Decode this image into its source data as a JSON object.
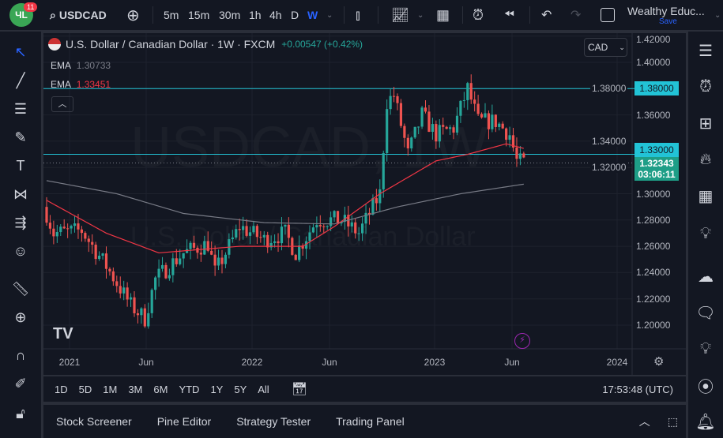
{
  "topbar": {
    "logo_badge": "11",
    "symbol": "USDCAD",
    "intervals": [
      "5m",
      "15m",
      "30m",
      "1h",
      "4h",
      "D",
      "W"
    ],
    "active_interval": "W",
    "layout_name": "Wealthy Educ...",
    "save_label": "Save"
  },
  "legend": {
    "title": "U.S. Dollar / Canadian Dollar · 1W · FXCM",
    "change": "+0.00547 (+0.42%)",
    "ema1_label": "EMA",
    "ema1_value": "1.30733",
    "ema2_label": "EMA",
    "ema2_value": "1.33451"
  },
  "watermark": {
    "symbol": "USDCAD, 1W",
    "name": "U.S. Dollar / Canadian Dollar"
  },
  "currency": "CAD",
  "price_axis": {
    "ticks": [
      "1.42000",
      "1.40000",
      "1.38000",
      "1.36000",
      "1.34000",
      "1.32000",
      "1.30000",
      "1.28000",
      "1.26000",
      "1.24000",
      "1.22000",
      "1.20000"
    ],
    "tick_values": [
      1.42,
      1.4,
      1.38,
      1.36,
      1.34,
      1.32,
      1.3,
      1.28,
      1.26,
      1.24,
      1.22,
      1.2
    ]
  },
  "horizontal_lines": [
    {
      "label": "1.38000",
      "value": 1.38
    },
    {
      "label": "1.33000",
      "value": 1.33
    }
  ],
  "last_price": {
    "value": "1.32343",
    "countdown": "03:06:11"
  },
  "time_axis": [
    "2021",
    "Jun",
    "2022",
    "Jun",
    "2023",
    "Jun",
    "2024"
  ],
  "price_path": [
    [
      0,
      1.285
    ],
    [
      2,
      1.27
    ],
    [
      10,
      1.272
    ],
    [
      17,
      1.245
    ],
    [
      24,
      1.215
    ],
    [
      28,
      1.205
    ],
    [
      31,
      1.235
    ],
    [
      39,
      1.255
    ],
    [
      46,
      1.262
    ],
    [
      48,
      1.24
    ],
    [
      55,
      1.275
    ],
    [
      62,
      1.265
    ],
    [
      68,
      1.27
    ],
    [
      71,
      1.255
    ],
    [
      77,
      1.28
    ],
    [
      84,
      1.28
    ],
    [
      89,
      1.27
    ],
    [
      95,
      1.3
    ],
    [
      97,
      1.37
    ],
    [
      99,
      1.375
    ],
    [
      103,
      1.33
    ],
    [
      107,
      1.36
    ],
    [
      111,
      1.345
    ],
    [
      116,
      1.35
    ],
    [
      120,
      1.38
    ],
    [
      123,
      1.355
    ],
    [
      128,
      1.355
    ],
    [
      132,
      1.345
    ],
    [
      134,
      1.325
    ],
    [
      136,
      1.3234
    ]
  ],
  "ema_fast": [
    [
      0,
      1.295
    ],
    [
      17,
      1.27
    ],
    [
      32,
      1.255
    ],
    [
      55,
      1.26
    ],
    [
      73,
      1.26
    ],
    [
      82,
      1.275
    ],
    [
      95,
      1.3
    ],
    [
      111,
      1.325
    ],
    [
      120,
      1.33
    ],
    [
      131,
      1.338
    ],
    [
      136,
      1.3345
    ]
  ],
  "ema_slow": [
    [
      0,
      1.31
    ],
    [
      20,
      1.3
    ],
    [
      39,
      1.285
    ],
    [
      62,
      1.278
    ],
    [
      82,
      1.277
    ],
    [
      100,
      1.29
    ],
    [
      118,
      1.3
    ],
    [
      136,
      1.3073
    ]
  ],
  "colors": {
    "up": "#26a69a",
    "down": "#ef5350",
    "ema_fast": "#f23645",
    "ema_slow": "#787b86",
    "hline": "#22c3d6",
    "accent": "#2962ff"
  },
  "range_buttons": [
    "1D",
    "5D",
    "1M",
    "3M",
    "6M",
    "YTD",
    "1Y",
    "5Y",
    "All"
  ],
  "clock": "17:53:48 (UTC)",
  "bottom_tabs": [
    "Stock Screener",
    "Pine Editor",
    "Strategy Tester",
    "Trading Panel"
  ]
}
